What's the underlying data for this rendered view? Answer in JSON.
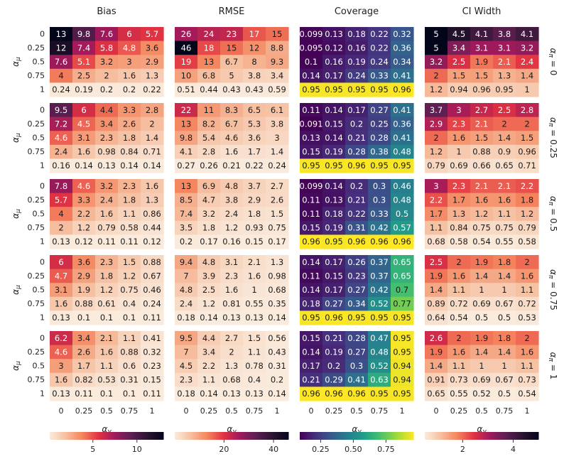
{
  "chart_data": {
    "type": "heatmap",
    "columns": [
      "Bias",
      "RMSE",
      "Coverage",
      "CI Width"
    ],
    "row_labels": [
      "α_π = 0",
      "α_π = 0.25",
      "α_π = 0.5",
      "α_π = 0.75",
      "α_π = 1"
    ],
    "x_ticks": [
      "0",
      "0.25",
      "0.5",
      "0.75",
      "1"
    ],
    "y_ticks": [
      "0",
      "0.25",
      "0.5",
      "0.75",
      "1"
    ],
    "xlabel": "α_γ",
    "ylabel": "α_μ",
    "colormaps": [
      "rocket_r",
      "rocket_r",
      "viridis",
      "rocket_r"
    ],
    "colorbars": [
      {
        "min": 0.1,
        "max": 13,
        "ticks": [
          5,
          10
        ]
      },
      {
        "min": 0.1,
        "max": 46,
        "ticks": [
          20,
          40
        ]
      },
      {
        "min": 0.09,
        "max": 0.96,
        "ticks": [
          0.25,
          0.5,
          0.75
        ],
        "tick_labels": [
          "0.25",
          "0.50",
          "0.75"
        ]
      },
      {
        "min": 0.5,
        "max": 5,
        "ticks": [
          2,
          4
        ]
      }
    ],
    "panels": [
      [
        [
          [
            "13",
            "9.8",
            "7.6",
            "6",
            "5.7"
          ],
          [
            "12",
            "7.4",
            "5.8",
            "4.8",
            "3.6"
          ],
          [
            "7.6",
            "5.1",
            "3.2",
            "3",
            "2.9"
          ],
          [
            "4",
            "2.5",
            "2",
            "1.6",
            "1.3"
          ],
          [
            "0.24",
            "0.19",
            "0.2",
            "0.2",
            "0.22"
          ]
        ],
        [
          [
            "26",
            "24",
            "23",
            "17",
            "15"
          ],
          [
            "46",
            "18",
            "15",
            "12",
            "8.8"
          ],
          [
            "19",
            "13",
            "6.7",
            "8",
            "9.3"
          ],
          [
            "10",
            "6.8",
            "5",
            "3.8",
            "3.4"
          ],
          [
            "0.51",
            "0.44",
            "0.43",
            "0.43",
            "0.59"
          ]
        ],
        [
          [
            "0.099",
            "0.13",
            "0.18",
            "0.22",
            "0.32"
          ],
          [
            "0.095",
            "0.12",
            "0.16",
            "0.22",
            "0.36"
          ],
          [
            "0.1",
            "0.16",
            "0.19",
            "0.24",
            "0.34"
          ],
          [
            "0.14",
            "0.17",
            "0.24",
            "0.33",
            "0.41"
          ],
          [
            "0.95",
            "0.95",
            "0.95",
            "0.95",
            "0.96"
          ]
        ],
        [
          [
            "5",
            "4.5",
            "4.1",
            "3.8",
            "4.1"
          ],
          [
            "5",
            "3.4",
            "3.1",
            "3.1",
            "3.2"
          ],
          [
            "3.2",
            "2.5",
            "1.9",
            "2.1",
            "2.4"
          ],
          [
            "2",
            "1.5",
            "1.5",
            "1.3",
            "1.4"
          ],
          [
            "1.2",
            "0.94",
            "0.96",
            "0.95",
            "1"
          ]
        ]
      ],
      [
        [
          [
            "9.5",
            "6",
            "4.4",
            "3.3",
            "2.8"
          ],
          [
            "7.2",
            "4.5",
            "3.4",
            "2.6",
            "2"
          ],
          [
            "4.6",
            "3.1",
            "2.3",
            "1.8",
            "1.4"
          ],
          [
            "2.4",
            "1.6",
            "0.98",
            "0.84",
            "0.71"
          ],
          [
            "0.16",
            "0.14",
            "0.13",
            "0.14",
            "0.14"
          ]
        ],
        [
          [
            "22",
            "11",
            "8.3",
            "6.5",
            "6.1"
          ],
          [
            "13",
            "8.2",
            "6.7",
            "5.3",
            "3.8"
          ],
          [
            "9.8",
            "5.4",
            "4.6",
            "3.6",
            "3"
          ],
          [
            "4.1",
            "2.8",
            "1.6",
            "1.7",
            "1.4"
          ],
          [
            "0.27",
            "0.26",
            "0.21",
            "0.22",
            "0.24"
          ]
        ],
        [
          [
            "0.11",
            "0.14",
            "0.17",
            "0.27",
            "0.41"
          ],
          [
            "0.091",
            "0.15",
            "0.2",
            "0.25",
            "0.36"
          ],
          [
            "0.13",
            "0.14",
            "0.21",
            "0.28",
            "0.41"
          ],
          [
            "0.15",
            "0.19",
            "0.28",
            "0.38",
            "0.48"
          ],
          [
            "0.95",
            "0.95",
            "0.96",
            "0.95",
            "0.95"
          ]
        ],
        [
          [
            "3.7",
            "3",
            "2.7",
            "2.5",
            "2.8"
          ],
          [
            "2.9",
            "2.3",
            "2.1",
            "2",
            "2"
          ],
          [
            "2",
            "1.6",
            "1.5",
            "1.4",
            "1.5"
          ],
          [
            "1.2",
            "1",
            "0.88",
            "0.9",
            "0.96"
          ],
          [
            "0.79",
            "0.69",
            "0.66",
            "0.65",
            "0.71"
          ]
        ]
      ],
      [
        [
          [
            "7.8",
            "4.6",
            "3.2",
            "2.3",
            "1.6"
          ],
          [
            "5.7",
            "3.3",
            "2.4",
            "1.8",
            "1.3"
          ],
          [
            "4",
            "2.2",
            "1.6",
            "1.1",
            "0.86"
          ],
          [
            "2",
            "1.2",
            "0.79",
            "0.58",
            "0.44"
          ],
          [
            "0.13",
            "0.12",
            "0.11",
            "0.11",
            "0.12"
          ]
        ],
        [
          [
            "13",
            "6.9",
            "4.8",
            "3.7",
            "2.7"
          ],
          [
            "8.5",
            "4.7",
            "3.8",
            "2.9",
            "2.6"
          ],
          [
            "7.4",
            "3.2",
            "2.4",
            "1.8",
            "1.5"
          ],
          [
            "3.5",
            "1.8",
            "1.2",
            "0.93",
            "0.75"
          ],
          [
            "0.2",
            "0.17",
            "0.16",
            "0.15",
            "0.17"
          ]
        ],
        [
          [
            "0.099",
            "0.14",
            "0.2",
            "0.3",
            "0.46"
          ],
          [
            "0.11",
            "0.13",
            "0.21",
            "0.3",
            "0.48"
          ],
          [
            "0.11",
            "0.18",
            "0.22",
            "0.33",
            "0.5"
          ],
          [
            "0.15",
            "0.19",
            "0.31",
            "0.42",
            "0.57"
          ],
          [
            "0.96",
            "0.95",
            "0.96",
            "0.96",
            "0.96"
          ]
        ],
        [
          [
            "3",
            "2.3",
            "2.1",
            "2.1",
            "2.2"
          ],
          [
            "2.2",
            "1.7",
            "1.6",
            "1.6",
            "1.8"
          ],
          [
            "1.7",
            "1.3",
            "1.2",
            "1.1",
            "1.2"
          ],
          [
            "1.1",
            "0.84",
            "0.75",
            "0.75",
            "0.79"
          ],
          [
            "0.68",
            "0.58",
            "0.54",
            "0.55",
            "0.58"
          ]
        ]
      ],
      [
        [
          [
            "6",
            "3.6",
            "2.3",
            "1.5",
            "0.88"
          ],
          [
            "4.7",
            "2.9",
            "1.8",
            "1.2",
            "0.67"
          ],
          [
            "3.1",
            "1.9",
            "1.2",
            "0.75",
            "0.46"
          ],
          [
            "1.6",
            "0.88",
            "0.61",
            "0.4",
            "0.24"
          ],
          [
            "0.13",
            "0.1",
            "0.1",
            "0.1",
            "0.11"
          ]
        ],
        [
          [
            "9.4",
            "4.8",
            "3.1",
            "2.1",
            "1.3"
          ],
          [
            "7",
            "3.9",
            "2.3",
            "1.6",
            "0.98"
          ],
          [
            "4.8",
            "2.5",
            "1.6",
            "1",
            "0.68"
          ],
          [
            "2.4",
            "1.2",
            "0.81",
            "0.55",
            "0.35"
          ],
          [
            "0.18",
            "0.14",
            "0.13",
            "0.13",
            "0.14"
          ]
        ],
        [
          [
            "0.14",
            "0.17",
            "0.26",
            "0.37",
            "0.65"
          ],
          [
            "0.11",
            "0.15",
            "0.23",
            "0.37",
            "0.65"
          ],
          [
            "0.14",
            "0.17",
            "0.27",
            "0.42",
            "0.7"
          ],
          [
            "0.18",
            "0.27",
            "0.34",
            "0.52",
            "0.77"
          ],
          [
            "0.95",
            "0.96",
            "0.95",
            "0.95",
            "0.95"
          ]
        ],
        [
          [
            "2.5",
            "2",
            "1.9",
            "1.8",
            "2"
          ],
          [
            "1.9",
            "1.6",
            "1.4",
            "1.4",
            "1.6"
          ],
          [
            "1.4",
            "1.1",
            "1",
            "1",
            "1.1"
          ],
          [
            "0.89",
            "0.72",
            "0.69",
            "0.67",
            "0.72"
          ],
          [
            "0.64",
            "0.54",
            "0.5",
            "0.5",
            "0.53"
          ]
        ]
      ],
      [
        [
          [
            "6.2",
            "3.4",
            "2.1",
            "1.1",
            "0.41"
          ],
          [
            "4.6",
            "2.6",
            "1.6",
            "0.88",
            "0.32"
          ],
          [
            "3",
            "1.7",
            "1.1",
            "0.6",
            "0.23"
          ],
          [
            "1.6",
            "0.82",
            "0.53",
            "0.31",
            "0.15"
          ],
          [
            "0.13",
            "0.11",
            "0.1",
            "0.1",
            "0.11"
          ]
        ],
        [
          [
            "9.5",
            "4.4",
            "2.7",
            "1.5",
            "0.56"
          ],
          [
            "7",
            "3.4",
            "2",
            "1.1",
            "0.43"
          ],
          [
            "4.5",
            "2.2",
            "1.3",
            "0.78",
            "0.31"
          ],
          [
            "2.3",
            "1.1",
            "0.68",
            "0.4",
            "0.2"
          ],
          [
            "0.18",
            "0.14",
            "0.13",
            "0.13",
            "0.14"
          ]
        ],
        [
          [
            "0.15",
            "0.21",
            "0.28",
            "0.47",
            "0.95"
          ],
          [
            "0.14",
            "0.19",
            "0.27",
            "0.48",
            "0.95"
          ],
          [
            "0.17",
            "0.2",
            "0.3",
            "0.52",
            "0.94"
          ],
          [
            "0.21",
            "0.29",
            "0.41",
            "0.63",
            "0.94"
          ],
          [
            "0.96",
            "0.96",
            "0.96",
            "0.95",
            "0.95"
          ]
        ],
        [
          [
            "2.6",
            "2",
            "1.9",
            "1.8",
            "2"
          ],
          [
            "1.9",
            "1.6",
            "1.4",
            "1.4",
            "1.6"
          ],
          [
            "1.4",
            "1.1",
            "1",
            "1",
            "1.1"
          ],
          [
            "0.91",
            "0.73",
            "0.69",
            "0.67",
            "0.73"
          ],
          [
            "0.65",
            "0.55",
            "0.52",
            "0.5",
            "0.54"
          ]
        ]
      ]
    ]
  }
}
